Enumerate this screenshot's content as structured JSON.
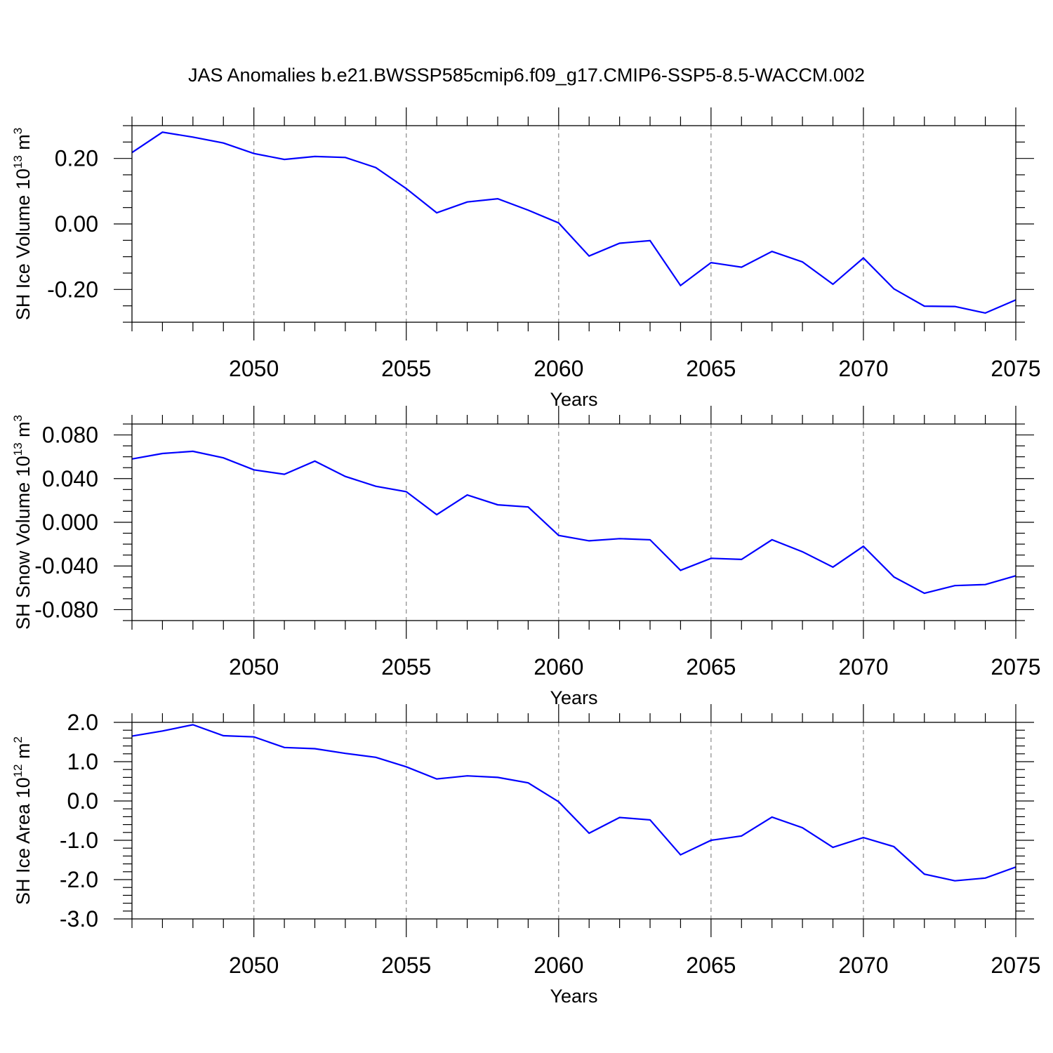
{
  "title": "JAS Anomalies b.e21.BWSSP585cmip6.f09_g17.CMIP6-SSP5-8.5-WACCM.002",
  "colors": {
    "line": "#0000ff",
    "axes": "#000000",
    "grid": "#888888"
  },
  "chart_data": [
    {
      "type": "line",
      "name": "sh-ice-volume",
      "ylabel_main": "SH Ice Volume 10",
      "ylabel_exp": "13",
      "ylabel_unit": "m",
      "ylabel_unit_exp": "3",
      "xlabel": "Years",
      "xlim": [
        2046,
        2075
      ],
      "ylim": [
        -0.3,
        0.3
      ],
      "xticks": [
        2050,
        2055,
        2060,
        2065,
        2070,
        2075
      ],
      "xtick_labels": [
        "2050",
        "2055",
        "2060",
        "2065",
        "2070",
        "2075"
      ],
      "yticks": [
        0.2,
        0.0,
        -0.2
      ],
      "ytick_labels": [
        "0.20",
        "0.00",
        "-0.20"
      ],
      "yminor_step": 0.05,
      "grid": "vertical dashed at major x ticks",
      "x": [
        2046,
        2047,
        2048,
        2049,
        2050,
        2051,
        2052,
        2053,
        2054,
        2055,
        2056,
        2057,
        2058,
        2059,
        2060,
        2061,
        2062,
        2063,
        2064,
        2065,
        2066,
        2067,
        2068,
        2069,
        2070,
        2071,
        2072,
        2073,
        2074,
        2075
      ],
      "values": [
        0.218,
        0.28,
        0.265,
        0.247,
        0.215,
        0.197,
        0.206,
        0.203,
        0.172,
        0.108,
        0.034,
        0.067,
        0.077,
        0.042,
        0.003,
        -0.098,
        -0.059,
        -0.051,
        -0.188,
        -0.118,
        -0.132,
        -0.084,
        -0.116,
        -0.184,
        -0.104,
        -0.198,
        -0.251,
        -0.252,
        -0.272,
        -0.232
      ]
    },
    {
      "type": "line",
      "name": "sh-snow-volume",
      "ylabel_main": "SH Snow Volume 10",
      "ylabel_exp": "13",
      "ylabel_unit": "m",
      "ylabel_unit_exp": "3",
      "xlabel": "Years",
      "xlim": [
        2046,
        2075
      ],
      "ylim": [
        -0.09,
        0.09
      ],
      "xticks": [
        2050,
        2055,
        2060,
        2065,
        2070,
        2075
      ],
      "xtick_labels": [
        "2050",
        "2055",
        "2060",
        "2065",
        "2070",
        "2075"
      ],
      "yticks": [
        0.08,
        0.04,
        0.0,
        -0.04,
        -0.08
      ],
      "ytick_labels": [
        "0.080",
        "0.040",
        "0.000",
        "-0.040",
        "-0.080"
      ],
      "yminor_step": 0.01,
      "grid": "vertical dashed at major x ticks",
      "x": [
        2046,
        2047,
        2048,
        2049,
        2050,
        2051,
        2052,
        2053,
        2054,
        2055,
        2056,
        2057,
        2058,
        2059,
        2060,
        2061,
        2062,
        2063,
        2064,
        2065,
        2066,
        2067,
        2068,
        2069,
        2070,
        2071,
        2072,
        2073,
        2074,
        2075
      ],
      "values": [
        0.058,
        0.063,
        0.065,
        0.059,
        0.048,
        0.044,
        0.056,
        0.042,
        0.033,
        0.028,
        0.007,
        0.025,
        0.016,
        0.014,
        -0.012,
        -0.017,
        -0.015,
        -0.016,
        -0.044,
        -0.033,
        -0.034,
        -0.016,
        -0.027,
        -0.041,
        -0.022,
        -0.05,
        -0.065,
        -0.058,
        -0.057,
        -0.049
      ]
    },
    {
      "type": "line",
      "name": "sh-ice-area",
      "ylabel_main": "SH Ice Area 10",
      "ylabel_exp": "12",
      "ylabel_unit": "m",
      "ylabel_unit_exp": "2",
      "xlabel": "Years",
      "xlim": [
        2046,
        2075
      ],
      "ylim": [
        -3.0,
        2.0
      ],
      "xticks": [
        2050,
        2055,
        2060,
        2065,
        2070,
        2075
      ],
      "xtick_labels": [
        "2050",
        "2055",
        "2060",
        "2065",
        "2070",
        "2075"
      ],
      "yticks": [
        2.0,
        1.0,
        0.0,
        -1.0,
        -2.0,
        -3.0
      ],
      "ytick_labels": [
        "2.0",
        "1.0",
        "0.0",
        "-1.0",
        "-2.0",
        "-3.0"
      ],
      "yminor_step": 0.2,
      "grid": "vertical dashed at major x ticks",
      "x": [
        2046,
        2047,
        2048,
        2049,
        2050,
        2051,
        2052,
        2053,
        2054,
        2055,
        2056,
        2057,
        2058,
        2059,
        2060,
        2061,
        2062,
        2063,
        2064,
        2065,
        2066,
        2067,
        2068,
        2069,
        2070,
        2071,
        2072,
        2073,
        2074,
        2075
      ],
      "values": [
        1.65,
        1.78,
        1.94,
        1.66,
        1.63,
        1.36,
        1.33,
        1.21,
        1.11,
        0.87,
        0.56,
        0.64,
        0.6,
        0.46,
        -0.02,
        -0.82,
        -0.42,
        -0.48,
        -1.37,
        -1.0,
        -0.89,
        -0.41,
        -0.68,
        -1.18,
        -0.93,
        -1.16,
        -1.86,
        -2.03,
        -1.96,
        -1.68
      ]
    }
  ]
}
